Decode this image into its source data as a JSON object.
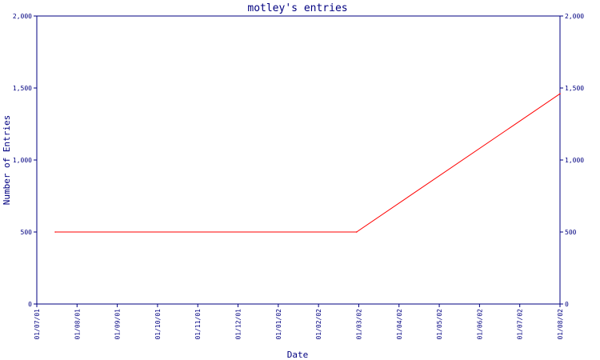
{
  "chart_data": {
    "type": "line",
    "title": "motley's entries",
    "xlabel": "Date",
    "ylabel": "Number of Entries",
    "x_tick_labels": [
      "01/07/01",
      "01/08/01",
      "01/09/01",
      "01/10/01",
      "01/11/01",
      "01/12/01",
      "01/01/02",
      "01/02/02",
      "01/03/02",
      "01/04/02",
      "01/05/02",
      "01/06/02",
      "01/07/02",
      "01/08/02"
    ],
    "y_tick_labels": [
      "0",
      "500",
      "1,000",
      "1,500",
      "2,000"
    ],
    "ylim": [
      0,
      2000
    ],
    "xlim": [
      "2001-07-01",
      "2002-08-01"
    ],
    "grid": false,
    "series": [
      {
        "x": [
          "2001-07-15",
          "2002-02-28",
          "2002-08-01"
        ],
        "values": [
          500,
          500,
          1460
        ]
      }
    ],
    "colors": {
      "line": "#ff0000",
      "axis": "#000080",
      "text": "#000080",
      "background": "#ffffff"
    }
  }
}
